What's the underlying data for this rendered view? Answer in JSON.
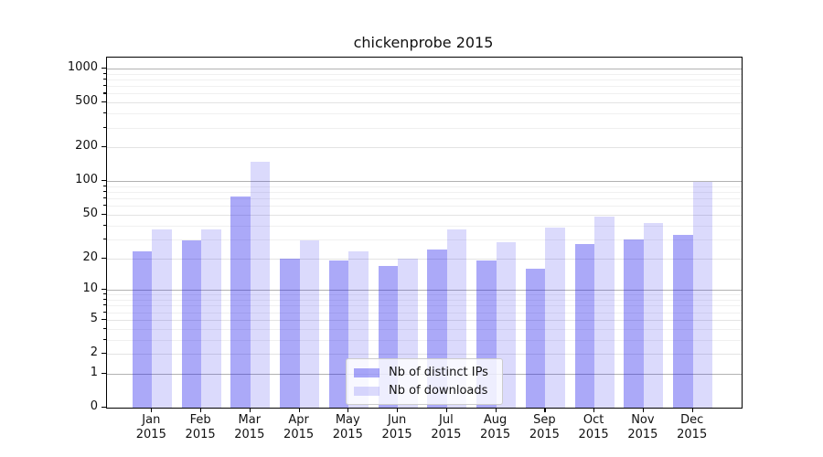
{
  "title": "chickenprobe 2015",
  "chart_data": {
    "type": "bar",
    "title": "chickenprobe 2015",
    "categories": [
      "Jan",
      "Feb",
      "Mar",
      "Apr",
      "May",
      "Jun",
      "Jul",
      "Aug",
      "Sep",
      "Oct",
      "Nov",
      "Dec"
    ],
    "year_label": "2015",
    "series": [
      {
        "name": "Nb of distinct IPs",
        "fill": "rgba(15,10,235,0.35)",
        "hex": "#a9a6f8",
        "values": [
          23,
          29,
          73,
          20,
          19,
          17,
          24,
          19,
          16,
          27,
          30,
          33
        ]
      },
      {
        "name": "Nb of downloads",
        "fill": "rgba(15,10,235,0.15)",
        "hex": "#dcdbfa",
        "values": [
          37,
          37,
          150,
          29,
          23,
          20,
          37,
          28,
          38,
          48,
          42,
          98
        ]
      }
    ],
    "yscale": "log1p",
    "yticks": [
      0,
      1,
      2,
      5,
      10,
      20,
      50,
      100,
      200,
      500,
      1000
    ],
    "ylim": [
      0,
      1250
    ],
    "grid": true,
    "legend_position": "lower-center",
    "background_color": "#ffffff",
    "axis_color": "#000000",
    "major_grid_color": "#b2b2b2",
    "minor_grid_color": "#f0f0f0"
  }
}
